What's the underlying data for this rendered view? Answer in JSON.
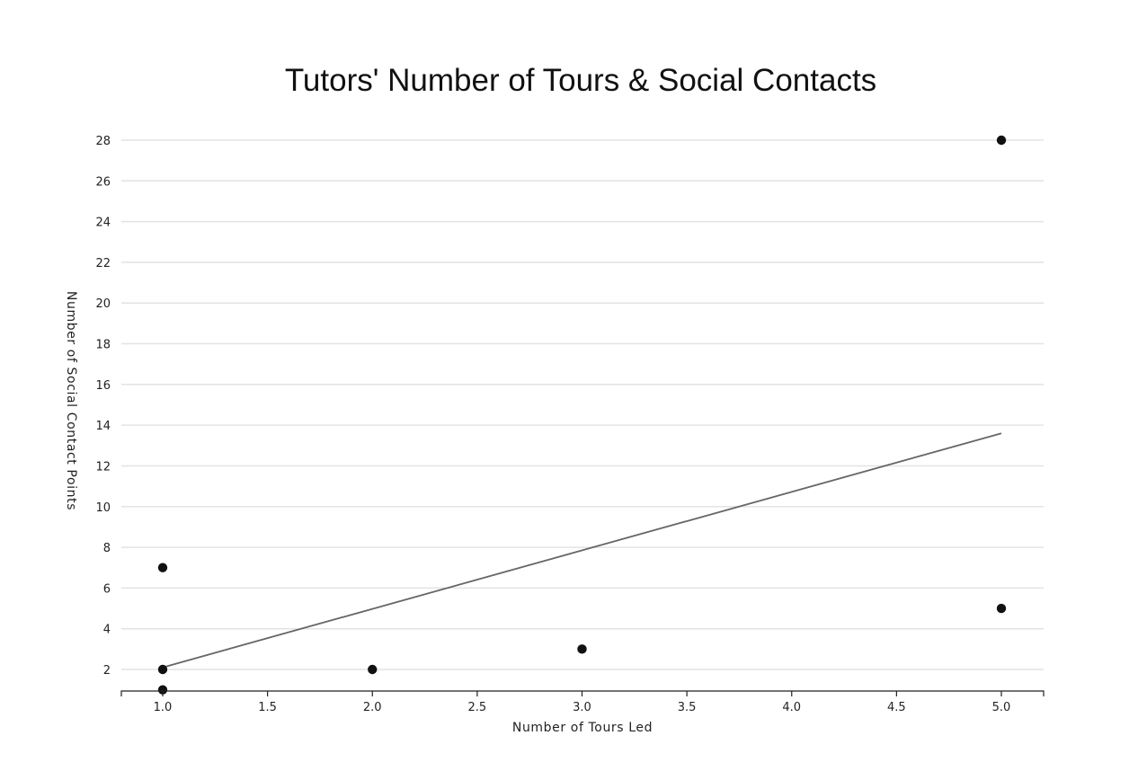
{
  "chart_data": {
    "type": "scatter",
    "title": "Tutors' Number of Tours & Social Contacts",
    "xlabel": "Number of Tours Led",
    "ylabel": "Number of Social Contact Points",
    "xlim": [
      0.8,
      5.2
    ],
    "ylim": [
      1,
      28
    ],
    "x_ticks": [
      "1.0",
      "1.5",
      "2.0",
      "2.5",
      "3.0",
      "3.5",
      "4.0",
      "4.5",
      "5.0"
    ],
    "y_ticks": [
      2,
      4,
      6,
      8,
      10,
      12,
      14,
      16,
      18,
      20,
      22,
      24,
      26,
      28
    ],
    "grid": "horizontal",
    "legend": "none",
    "points": [
      {
        "x": 1,
        "y": 7
      },
      {
        "x": 1,
        "y": 2
      },
      {
        "x": 1,
        "y": 1
      },
      {
        "x": 2,
        "y": 2
      },
      {
        "x": 3,
        "y": 3
      },
      {
        "x": 5,
        "y": 5
      },
      {
        "x": 5,
        "y": 28
      }
    ],
    "trendline": {
      "x": [
        1,
        5
      ],
      "y": [
        2.1,
        13.6
      ]
    },
    "colors": {
      "points": "#111111",
      "trendline": "#666666",
      "grid": "#e3e3e3"
    }
  }
}
